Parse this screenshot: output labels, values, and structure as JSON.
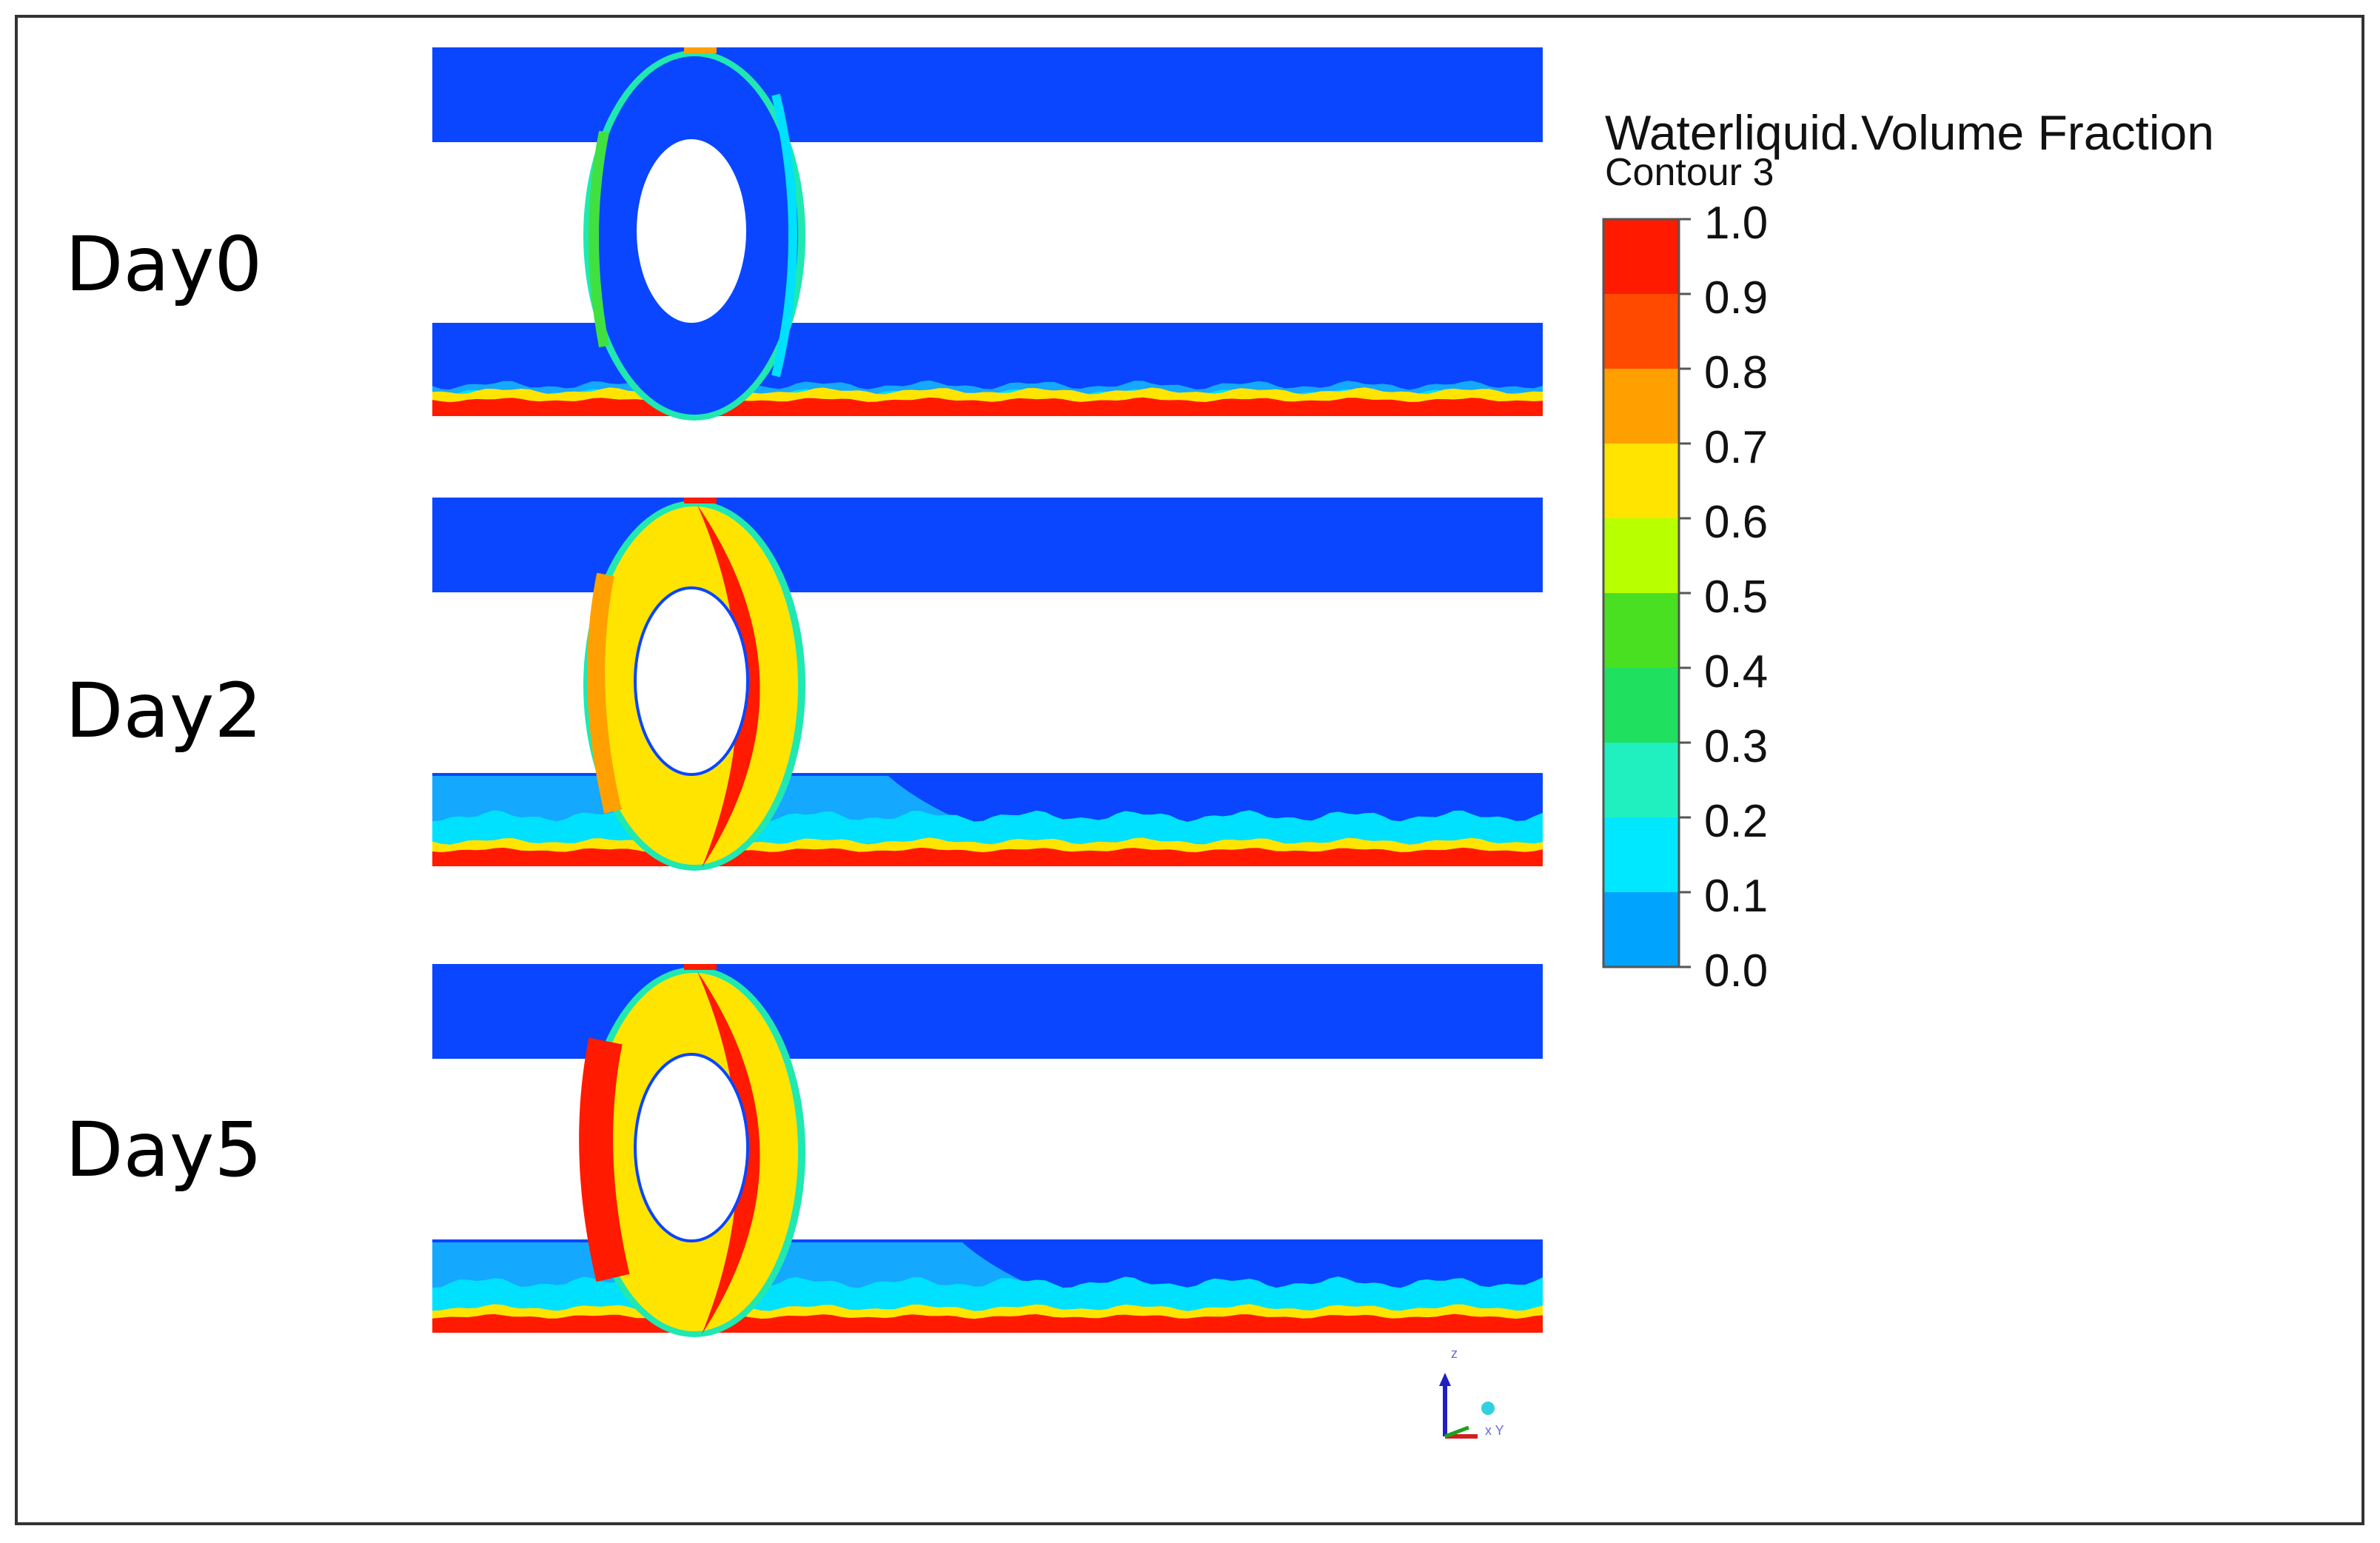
{
  "panels": [
    {
      "label": "Day0",
      "stage": 0
    },
    {
      "label": "Day2",
      "stage": 2
    },
    {
      "label": "Day5",
      "stage": 5
    }
  ],
  "legend": {
    "title": "Waterliquid.Volume Fraction",
    "subtitle": "Contour 3",
    "ticks": [
      "1.0",
      "0.9",
      "0.8",
      "0.7",
      "0.6",
      "0.5",
      "0.4",
      "0.3",
      "0.2",
      "0.1",
      "0.0"
    ],
    "colors": [
      "#ff1a00",
      "#ff4a00",
      "#ffa000",
      "#ffe400",
      "#b8ff00",
      "#48e020",
      "#20e060",
      "#20f0c0",
      "#00e8ff",
      "#00a4ff",
      "#0a46ff"
    ]
  },
  "axes_triad": {
    "z_label": "z",
    "xy_label": "x Y"
  },
  "palette": {
    "blue": "#0a46ff",
    "light_blue": "#14a8ff",
    "cyan": "#00e0ff",
    "teal": "#20e8b0",
    "green": "#40e040",
    "yellow": "#ffe400",
    "orange": "#ffa000",
    "red": "#ff1a00",
    "frame": "#333333"
  }
}
